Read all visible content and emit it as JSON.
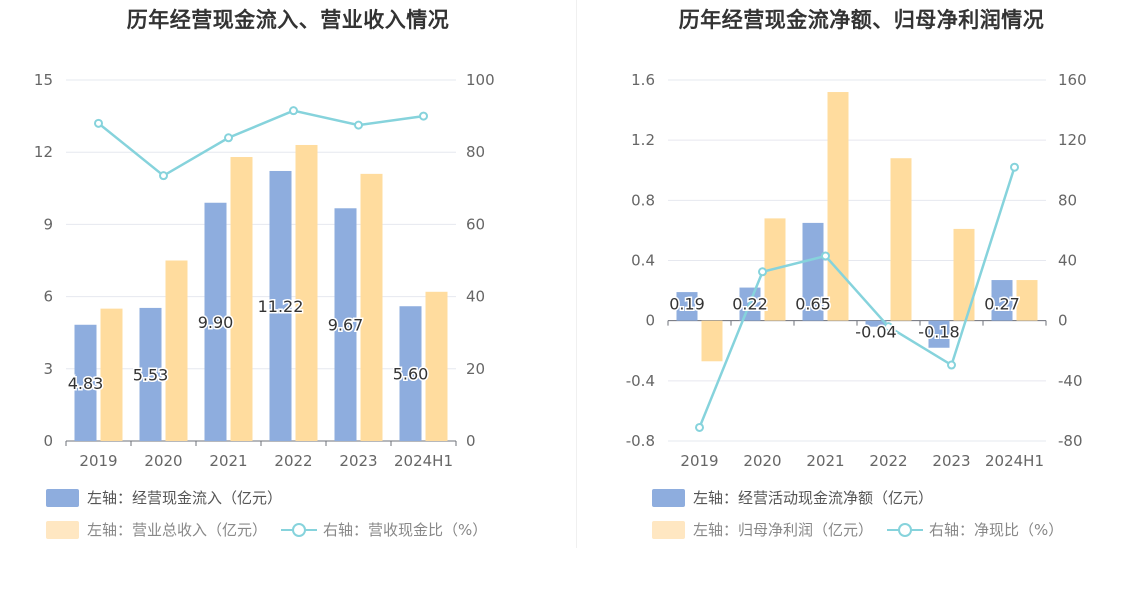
{
  "colors": {
    "bar_primary": "#8eadde",
    "bar_secondary": "#ffdc9e",
    "bar_secondary_legend": "#ffe7c2",
    "line": "#86d3dc",
    "grid": "#e6e8ef",
    "axis_text": "#666666"
  },
  "chart_data": [
    {
      "type": "bar+line",
      "title": "历年经营现金流入、营业收入情况",
      "categories": [
        "2019",
        "2020",
        "2021",
        "2022",
        "2023",
        "2024H1"
      ],
      "left_axis": {
        "ylim": [
          0,
          15
        ],
        "ticks": [
          "0",
          "3",
          "6",
          "9",
          "12",
          "15"
        ]
      },
      "right_axis": {
        "ylim": [
          0,
          100
        ],
        "ticks": [
          "0",
          "20",
          "40",
          "60",
          "80",
          "100"
        ]
      },
      "series": [
        {
          "name": "左轴：经营现金流入（亿元）",
          "type": "bar",
          "axis": "left",
          "values": [
            4.83,
            5.53,
            9.9,
            11.22,
            9.67,
            5.6
          ],
          "labels": [
            "4.83",
            "5.53",
            "9.90",
            "11.22",
            "9.67",
            "5.60"
          ]
        },
        {
          "name": "左轴：营业总收入（亿元）",
          "type": "bar",
          "axis": "left",
          "values": [
            5.5,
            7.5,
            11.8,
            12.3,
            11.1,
            6.2
          ]
        },
        {
          "name": "右轴：营收现金比（%）",
          "type": "line",
          "axis": "right",
          "values": [
            88,
            73.5,
            84,
            91.5,
            87.5,
            90
          ]
        }
      ],
      "grid": true,
      "legend_position": "bottom-left"
    },
    {
      "type": "bar+line",
      "title": "历年经营现金流净额、归母净利润情况",
      "categories": [
        "2019",
        "2020",
        "2021",
        "2022",
        "2023",
        "2024H1"
      ],
      "left_axis": {
        "ylim": [
          -0.8,
          1.6
        ],
        "ticks": [
          "-0.8",
          "-0.4",
          "0",
          "0.4",
          "0.8",
          "1.2",
          "1.6"
        ]
      },
      "right_axis": {
        "ylim": [
          -80,
          160
        ],
        "ticks": [
          "-80",
          "-40",
          "0",
          "40",
          "80",
          "120",
          "160"
        ]
      },
      "series": [
        {
          "name": "左轴：经营活动现金流净额（亿元）",
          "type": "bar",
          "axis": "left",
          "values": [
            0.19,
            0.22,
            0.65,
            -0.04,
            -0.18,
            0.27
          ],
          "labels": [
            "0.19",
            "0.22",
            "0.65",
            "-0.04",
            "-0.18",
            "0.27"
          ]
        },
        {
          "name": "左轴：归母净利润（亿元）",
          "type": "bar",
          "axis": "left",
          "values": [
            -0.27,
            0.68,
            1.52,
            1.08,
            0.61,
            0.27
          ]
        },
        {
          "name": "右轴：净现比（%）",
          "type": "line",
          "axis": "right",
          "values": [
            -71,
            32.5,
            43,
            -4,
            -29.5,
            102
          ]
        }
      ],
      "grid": true,
      "legend_position": "bottom-left"
    }
  ]
}
